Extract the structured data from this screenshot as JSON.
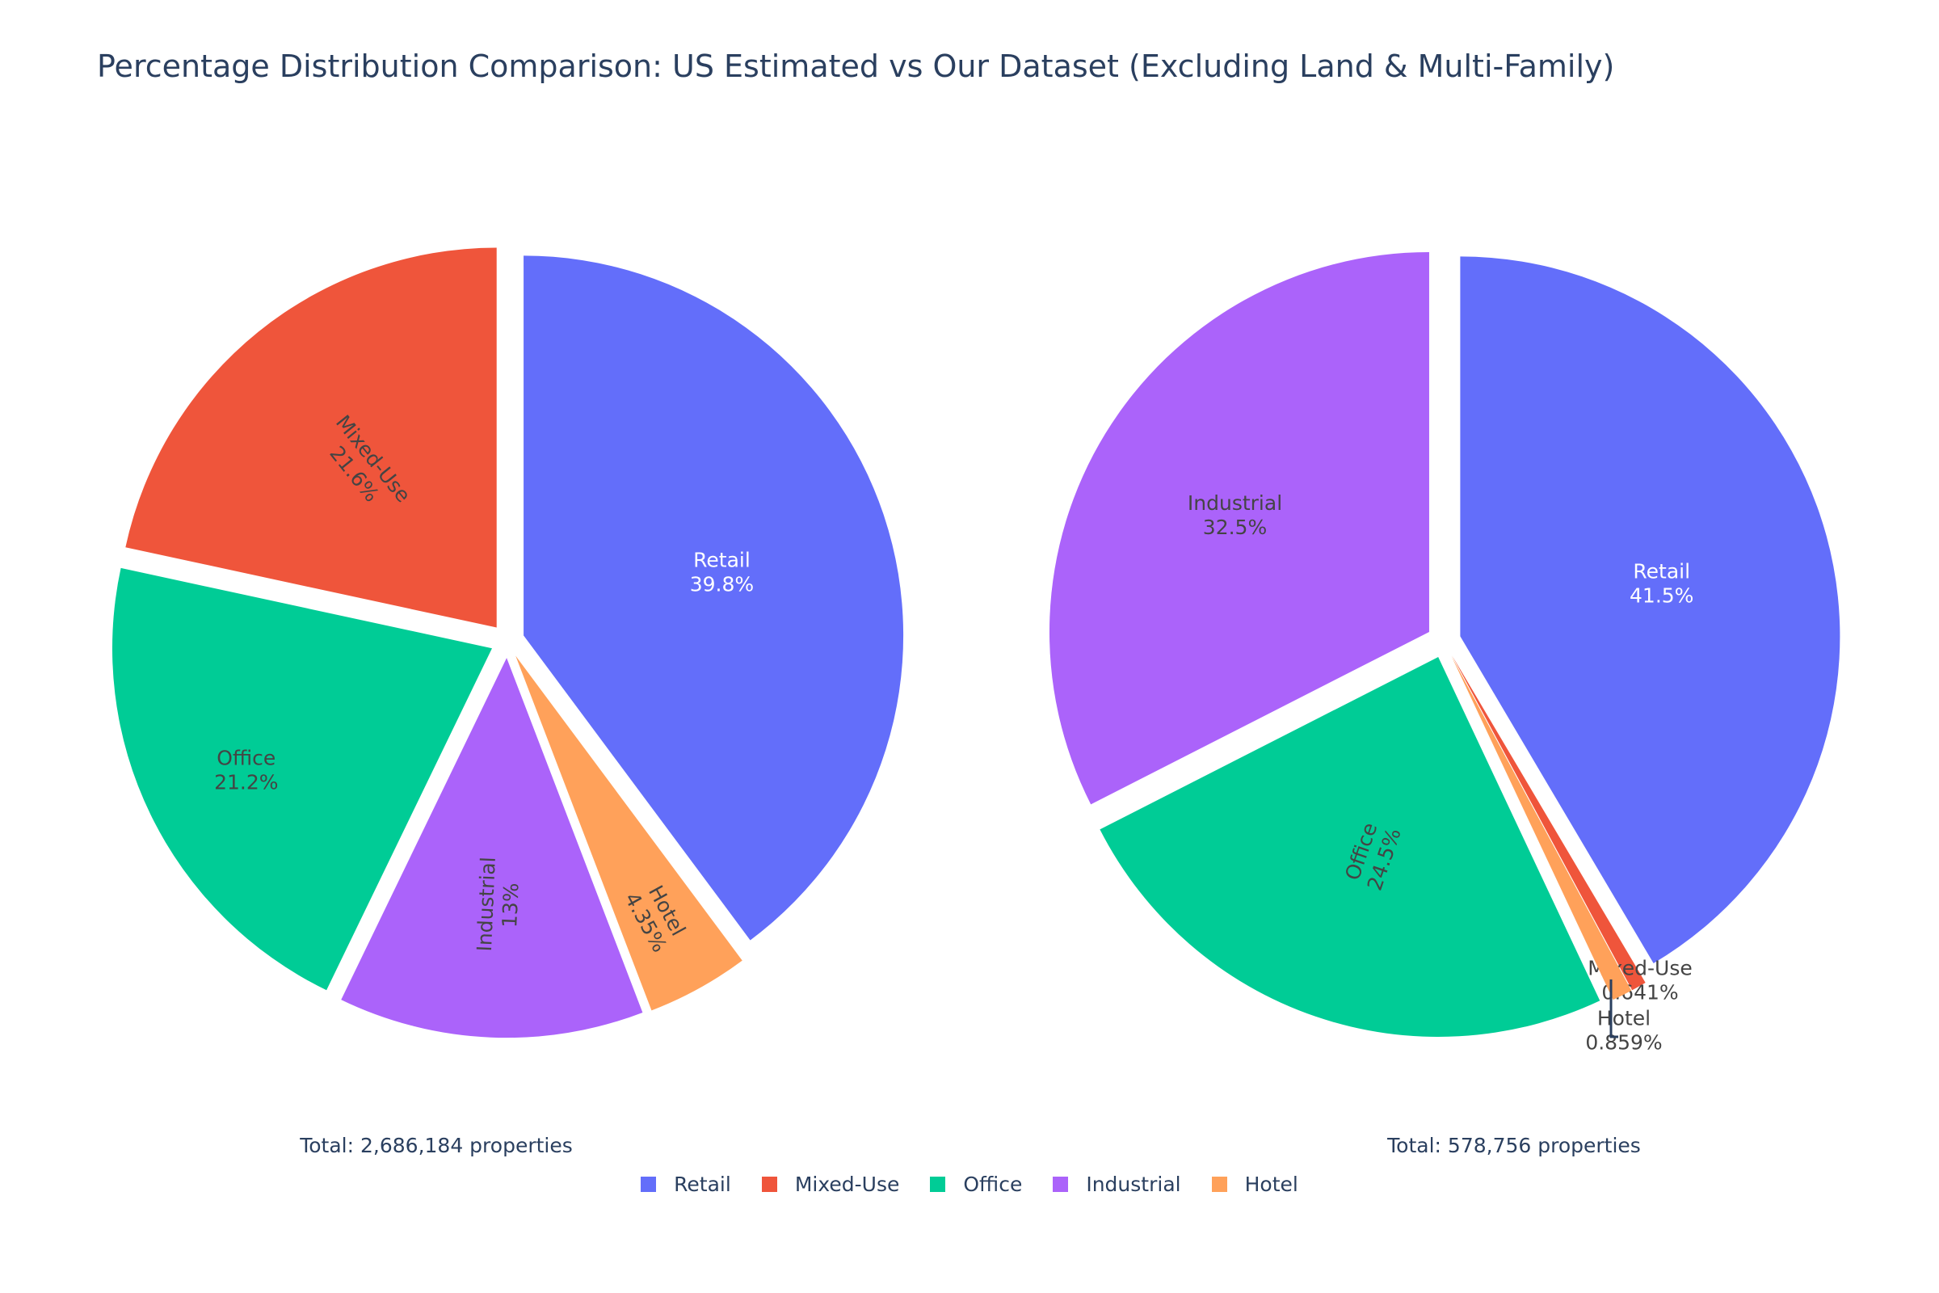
{
  "title": "Percentage Distribution Comparison: US Estimated vs Our Dataset (Excluding Land & Multi-Family)",
  "colors": {
    "Retail": "#636efa",
    "Mixed-Use": "#ef553b",
    "Office": "#00cc96",
    "Industrial": "#ab63fa",
    "Hotel": "#ffa15a"
  },
  "legend": [
    {
      "label": "Retail",
      "color": "#636efa"
    },
    {
      "label": "Mixed-Use",
      "color": "#ef553b"
    },
    {
      "label": "Office",
      "color": "#00cc96"
    },
    {
      "label": "Industrial",
      "color": "#ab63fa"
    },
    {
      "label": "Hotel",
      "color": "#ffa15a"
    }
  ],
  "totals": {
    "left": "Total: 2,686,184 properties",
    "right": "Total: 578,756 properties"
  },
  "chart_data": [
    {
      "type": "pie",
      "title": "",
      "total_label": "Total: 2,686,184 properties",
      "slices": [
        {
          "label": "Retail",
          "percent": 39.8,
          "text": "39.8%"
        },
        {
          "label": "Hotel",
          "percent": 4.35,
          "text": "4.35%"
        },
        {
          "label": "Industrial",
          "percent": 13.0,
          "text": "13%"
        },
        {
          "label": "Office",
          "percent": 21.2,
          "text": "21.2%"
        },
        {
          "label": "Mixed-Use",
          "percent": 21.6,
          "text": "21.6%"
        }
      ]
    },
    {
      "type": "pie",
      "title": "",
      "total_label": "Total: 578,756 properties",
      "slices": [
        {
          "label": "Retail",
          "percent": 41.5,
          "text": "41.5%"
        },
        {
          "label": "Mixed-Use",
          "percent": 0.641,
          "text": "0.641%"
        },
        {
          "label": "Hotel",
          "percent": 0.859,
          "text": "0.859%"
        },
        {
          "label": "Office",
          "percent": 24.5,
          "text": "24.5%"
        },
        {
          "label": "Industrial",
          "percent": 32.5,
          "text": "32.5%"
        }
      ]
    }
  ]
}
